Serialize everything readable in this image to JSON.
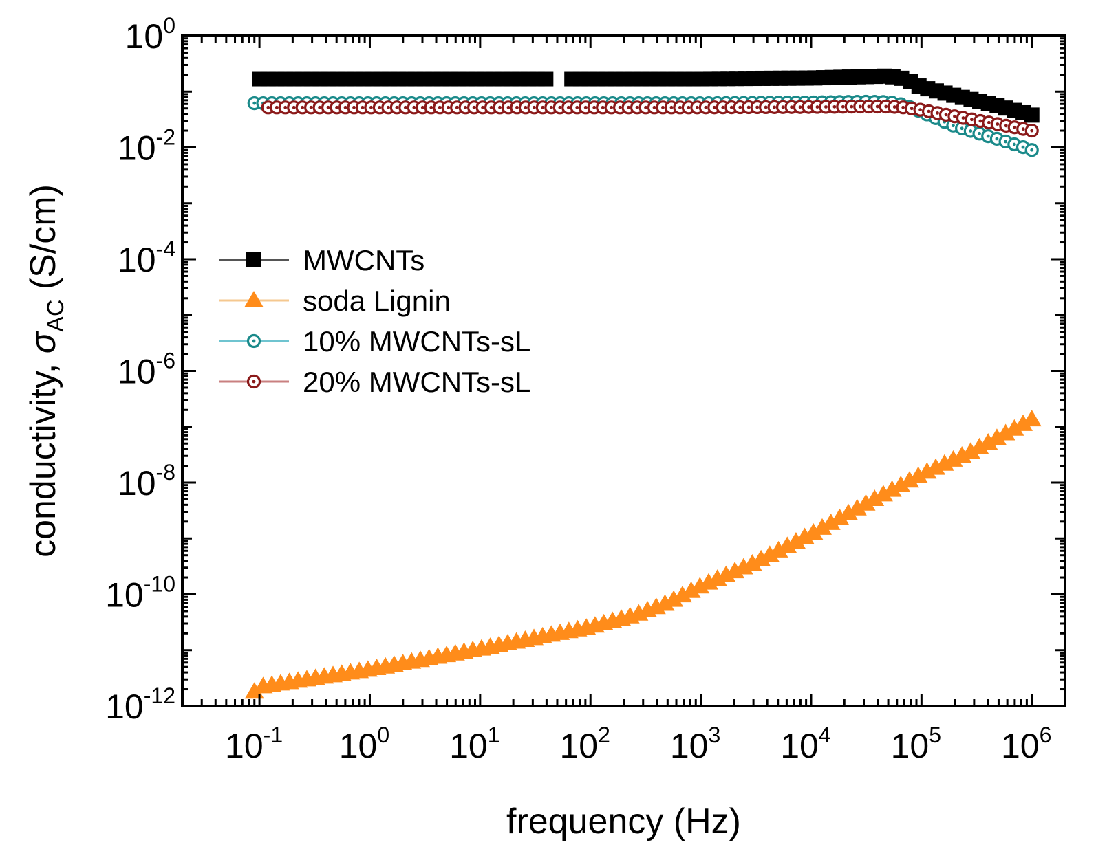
{
  "chart_data": {
    "type": "scatter",
    "xlabel": "frequency (Hz)",
    "ylabel_prefix": "conductivity, ",
    "ylabel_symbol": "σ",
    "ylabel_subscript": "AC",
    "ylabel_suffix": " (S/cm)",
    "x_scale": "log",
    "y_scale": "log",
    "xlim": [
      0.02,
      2000000
    ],
    "ylim": [
      1e-12,
      1
    ],
    "x_ticks": [
      {
        "base": "10",
        "exp": "-1",
        "value": 0.1
      },
      {
        "base": "10",
        "exp": "0",
        "value": 1
      },
      {
        "base": "10",
        "exp": "1",
        "value": 10
      },
      {
        "base": "10",
        "exp": "2",
        "value": 100
      },
      {
        "base": "10",
        "exp": "3",
        "value": 1000
      },
      {
        "base": "10",
        "exp": "4",
        "value": 10000
      },
      {
        "base": "10",
        "exp": "5",
        "value": 100000
      },
      {
        "base": "10",
        "exp": "6",
        "value": 1000000
      }
    ],
    "y_ticks": [
      {
        "base": "10",
        "exp": "0",
        "value": 1
      },
      {
        "base": "10",
        "exp": "-2",
        "value": 0.01
      },
      {
        "base": "10",
        "exp": "-4",
        "value": 0.0001
      },
      {
        "base": "10",
        "exp": "-6",
        "value": 1e-06
      },
      {
        "base": "10",
        "exp": "-8",
        "value": 1e-08
      },
      {
        "base": "10",
        "exp": "-10",
        "value": 1e-10
      },
      {
        "base": "10",
        "exp": "-12",
        "value": 1e-12
      }
    ],
    "grid": false,
    "legend_position": "center-left",
    "series": [
      {
        "name": "MWCNTs",
        "marker": "square",
        "color": "#000000",
        "line_color": "#555555",
        "x": [
          0.1,
          1,
          10,
          40,
          60,
          100,
          1000,
          10000,
          30000,
          50000,
          70000,
          100000,
          200000,
          500000,
          1000000
        ],
        "y": [
          0.17,
          0.17,
          0.17,
          0.17,
          0.17,
          0.17,
          0.17,
          0.175,
          0.185,
          0.19,
          0.17,
          0.12,
          0.085,
          0.055,
          0.038
        ]
      },
      {
        "name": "soda Lignin",
        "marker": "triangle",
        "color": "#ff8c1a",
        "line_color": "#f5c890",
        "x": [
          0.09,
          0.1,
          1,
          10,
          100,
          250,
          500,
          1000,
          3000,
          10000,
          30000,
          100000,
          300000,
          1000000
        ],
        "y": [
          1.8e-12,
          2.2e-12,
          4.5e-12,
          1.05e-11,
          2.6e-11,
          4.2e-11,
          7e-11,
          1.4e-10,
          3.6e-10,
          1.2e-09,
          4e-09,
          1.4e-08,
          3.8e-08,
          1.35e-07
        ]
      },
      {
        "name": "10% MWCNTs-sL",
        "marker": "circle-dot",
        "color": "#1a8a8a",
        "line_color": "#6fc4d0",
        "x": [
          0.09,
          1,
          10,
          100,
          1000,
          10000,
          30000,
          50000,
          70000,
          100000,
          200000,
          500000,
          1000000
        ],
        "y": [
          0.062,
          0.062,
          0.062,
          0.062,
          0.062,
          0.064,
          0.066,
          0.065,
          0.058,
          0.043,
          0.024,
          0.014,
          0.009
        ]
      },
      {
        "name": "20% MWCNTs-sL",
        "marker": "circle-dot",
        "color": "#8b1a1a",
        "line_color": "#c98080",
        "x": [
          0.12,
          1,
          10,
          100,
          1000,
          10000,
          30000,
          50000,
          70000,
          100000,
          200000,
          500000,
          1000000
        ],
        "y": [
          0.052,
          0.052,
          0.052,
          0.052,
          0.052,
          0.053,
          0.054,
          0.054,
          0.052,
          0.047,
          0.036,
          0.026,
          0.02
        ]
      }
    ]
  }
}
